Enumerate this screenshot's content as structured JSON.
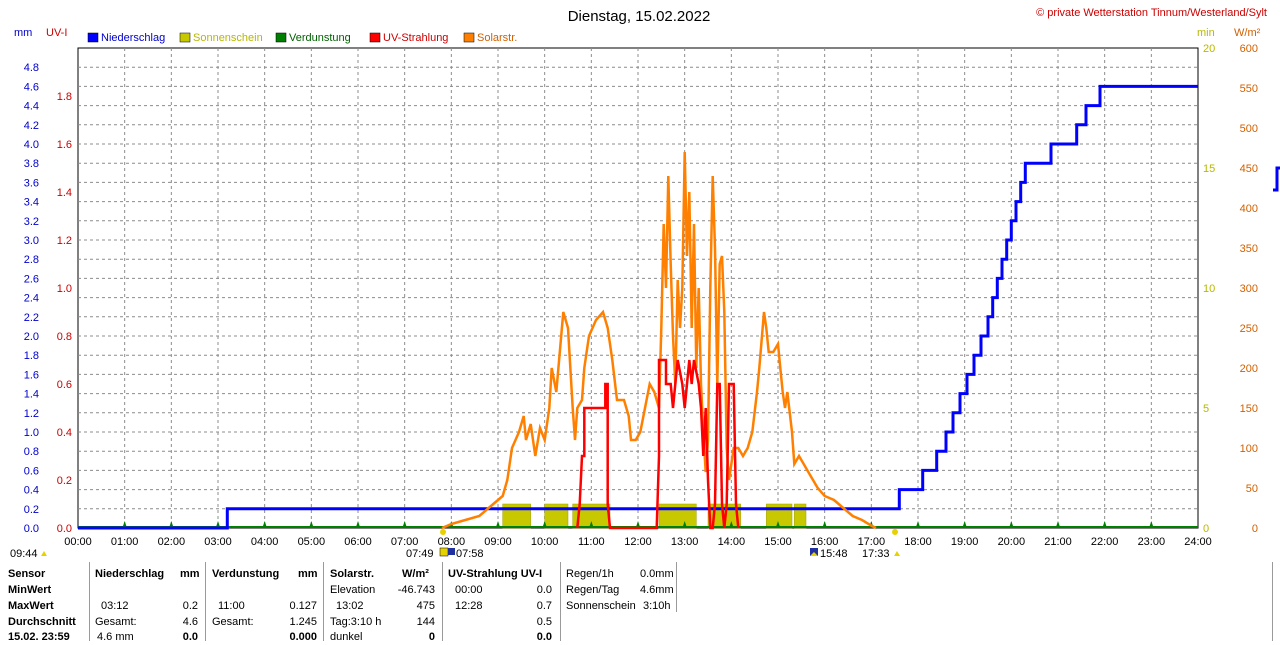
{
  "header": {
    "title": "Dienstag, 15.02.2022",
    "copyright": "© private Wetterstation Tinnum/Westerland/Sylt"
  },
  "axes": {
    "left_unit_mm": "mm",
    "left_unit_uv": "UV-I",
    "right_unit_min": "min",
    "right_unit_wm2": "W/m²",
    "mm_ticks": [
      "4.8",
      "4.6",
      "4.4",
      "4.2",
      "4.0",
      "3.8",
      "3.6",
      "3.4",
      "3.2",
      "3.0",
      "2.8",
      "2.6",
      "2.4",
      "2.2",
      "2.0",
      "1.8",
      "1.6",
      "1.4",
      "1.2",
      "1.0",
      "0.8",
      "0.6",
      "0.4",
      "0.2",
      "0.0"
    ],
    "uv_ticks": [
      "1.8",
      "1.6",
      "1.4",
      "1.2",
      "1.0",
      "0.8",
      "0.6",
      "0.4",
      "0.2",
      "0.0"
    ],
    "min_ticks": [
      "20",
      "15",
      "10",
      "5",
      "0"
    ],
    "wm2_ticks": [
      "600",
      "550",
      "500",
      "450",
      "400",
      "350",
      "300",
      "250",
      "200",
      "150",
      "100",
      "50",
      "0"
    ],
    "x_ticks": [
      "00:00",
      "01:00",
      "02:00",
      "03:00",
      "04:00",
      "05:00",
      "06:00",
      "07:00",
      "08:00",
      "09:00",
      "10:00",
      "11:00",
      "12:00",
      "13:00",
      "14:00",
      "15:00",
      "16:00",
      "17:00",
      "18:00",
      "19:00",
      "20:00",
      "21:00",
      "22:00",
      "23:00",
      "24:00"
    ]
  },
  "legend": [
    {
      "label": "Niederschlag",
      "color": "#0000ff",
      "text_color": "#0000cc"
    },
    {
      "label": "Sonnenschein",
      "color": "#c8c800",
      "text_color": "#b8b800"
    },
    {
      "label": "Verdunstung",
      "color": "#008000",
      "text_color": "#006000"
    },
    {
      "label": "UV-Strahlung",
      "color": "#ff0000",
      "text_color": "#cc0000"
    },
    {
      "label": "Solarstr.",
      "color": "#ff8000",
      "text_color": "#d06000"
    }
  ],
  "sun_times": {
    "moonrise": "09:44",
    "sunrise": "07:49",
    "sunrise2": "07:58",
    "sunset": "15:48",
    "sunset2": "17:33"
  },
  "chart_data": {
    "type": "line",
    "x_unit": "hour",
    "xlim": [
      0,
      24
    ],
    "ylim_mm": [
      0,
      5.0
    ],
    "ylim_uv": [
      0,
      2.0
    ],
    "ylim_min": [
      0,
      20
    ],
    "ylim_wm2": [
      0,
      600
    ],
    "series": [
      {
        "name": "Niederschlag",
        "axis": "mm",
        "color": "#0000ff",
        "step": true,
        "points": [
          [
            0,
            0
          ],
          [
            3.2,
            0
          ],
          [
            3.2,
            0.2
          ],
          [
            17.6,
            0.2
          ],
          [
            17.6,
            0.4
          ],
          [
            18.1,
            0.4
          ],
          [
            18.1,
            0.6
          ],
          [
            18.4,
            0.6
          ],
          [
            18.4,
            0.8
          ],
          [
            18.6,
            0.8
          ],
          [
            18.6,
            1.0
          ],
          [
            18.75,
            1.0
          ],
          [
            18.75,
            1.2
          ],
          [
            18.9,
            1.2
          ],
          [
            18.9,
            1.4
          ],
          [
            19.05,
            1.4
          ],
          [
            19.05,
            1.6
          ],
          [
            19.2,
            1.6
          ],
          [
            19.2,
            1.8
          ],
          [
            19.35,
            1.8
          ],
          [
            19.35,
            2.0
          ],
          [
            19.5,
            2.0
          ],
          [
            19.5,
            2.2
          ],
          [
            19.6,
            2.2
          ],
          [
            19.6,
            2.4
          ],
          [
            19.7,
            2.4
          ],
          [
            19.7,
            2.6
          ],
          [
            19.8,
            2.6
          ],
          [
            19.8,
            2.8
          ],
          [
            19.9,
            2.8
          ],
          [
            19.9,
            3.0
          ],
          [
            20.0,
            3.0
          ],
          [
            20.0,
            3.2
          ],
          [
            20.1,
            3.2
          ],
          [
            20.1,
            3.4
          ],
          [
            20.2,
            3.4
          ],
          [
            20.2,
            3.6
          ],
          [
            20.3,
            3.6
          ],
          [
            20.3,
            3.8
          ],
          [
            20.85,
            3.8
          ],
          [
            20.85,
            4.0
          ],
          [
            21.4,
            4.0
          ],
          [
            21.4,
            4.2
          ],
          [
            21.6,
            4.2
          ],
          [
            21.6,
            4.4
          ],
          [
            21.9,
            4.4
          ],
          [
            21.9,
            4.6
          ],
          [
            24,
            4.6
          ]
        ]
      },
      {
        "name": "Solarstr.",
        "axis": "wm2",
        "color": "#ff8000",
        "points": [
          [
            7.8,
            0
          ],
          [
            8.0,
            5
          ],
          [
            8.3,
            10
          ],
          [
            8.6,
            15
          ],
          [
            8.9,
            30
          ],
          [
            9.1,
            40
          ],
          [
            9.2,
            60
          ],
          [
            9.3,
            100
          ],
          [
            9.45,
            120
          ],
          [
            9.55,
            140
          ],
          [
            9.6,
            110
          ],
          [
            9.7,
            130
          ],
          [
            9.8,
            90
          ],
          [
            9.9,
            125
          ],
          [
            10.0,
            110
          ],
          [
            10.1,
            150
          ],
          [
            10.15,
            200
          ],
          [
            10.25,
            170
          ],
          [
            10.4,
            270
          ],
          [
            10.5,
            250
          ],
          [
            10.6,
            150
          ],
          [
            10.65,
            110
          ],
          [
            10.7,
            150
          ],
          [
            10.8,
            160
          ],
          [
            10.85,
            200
          ],
          [
            10.95,
            240
          ],
          [
            11.1,
            260
          ],
          [
            11.25,
            270
          ],
          [
            11.35,
            250
          ],
          [
            11.45,
            210
          ],
          [
            11.55,
            160
          ],
          [
            11.7,
            160
          ],
          [
            11.8,
            140
          ],
          [
            11.85,
            110
          ],
          [
            11.95,
            110
          ],
          [
            12.05,
            120
          ],
          [
            12.15,
            150
          ],
          [
            12.25,
            180
          ],
          [
            12.35,
            170
          ],
          [
            12.45,
            150
          ],
          [
            12.5,
            250
          ],
          [
            12.55,
            380
          ],
          [
            12.6,
            300
          ],
          [
            12.65,
            440
          ],
          [
            12.7,
            330
          ],
          [
            12.75,
            240
          ],
          [
            12.8,
            180
          ],
          [
            12.85,
            310
          ],
          [
            12.9,
            250
          ],
          [
            12.95,
            300
          ],
          [
            13.0,
            470
          ],
          [
            13.05,
            340
          ],
          [
            13.1,
            420
          ],
          [
            13.15,
            250
          ],
          [
            13.2,
            380
          ],
          [
            13.25,
            200
          ],
          [
            13.3,
            300
          ],
          [
            13.35,
            180
          ],
          [
            13.4,
            120
          ],
          [
            13.45,
            70
          ],
          [
            13.5,
            110
          ],
          [
            13.55,
            300
          ],
          [
            13.6,
            440
          ],
          [
            13.65,
            350
          ],
          [
            13.7,
            180
          ],
          [
            13.75,
            330
          ],
          [
            13.8,
            340
          ],
          [
            13.85,
            270
          ],
          [
            13.9,
            100
          ],
          [
            13.95,
            60
          ],
          [
            14.05,
            100
          ],
          [
            14.15,
            100
          ],
          [
            14.25,
            90
          ],
          [
            14.35,
            100
          ],
          [
            14.45,
            120
          ],
          [
            14.55,
            170
          ],
          [
            14.6,
            200
          ],
          [
            14.7,
            270
          ],
          [
            14.75,
            250
          ],
          [
            14.8,
            220
          ],
          [
            14.9,
            220
          ],
          [
            15.0,
            230
          ],
          [
            15.05,
            200
          ],
          [
            15.1,
            170
          ],
          [
            15.15,
            150
          ],
          [
            15.2,
            170
          ],
          [
            15.3,
            120
          ],
          [
            15.35,
            80
          ],
          [
            15.45,
            90
          ],
          [
            15.55,
            80
          ],
          [
            15.65,
            70
          ],
          [
            15.75,
            60
          ],
          [
            15.85,
            50
          ],
          [
            16.0,
            40
          ],
          [
            16.2,
            35
          ],
          [
            16.4,
            25
          ],
          [
            16.6,
            15
          ],
          [
            16.8,
            10
          ],
          [
            17.0,
            3
          ],
          [
            17.1,
            0
          ]
        ]
      },
      {
        "name": "UV-Strahlung",
        "axis": "uv",
        "color": "#ff0000",
        "points": [
          [
            10.7,
            0
          ],
          [
            10.75,
            0.1
          ],
          [
            10.8,
            0.3
          ],
          [
            10.85,
            0.3
          ],
          [
            10.85,
            0.5
          ],
          [
            11.3,
            0.5
          ],
          [
            11.3,
            0.6
          ],
          [
            11.35,
            0.6
          ],
          [
            11.35,
            0.1
          ],
          [
            11.4,
            0
          ],
          [
            12.4,
            0
          ],
          [
            12.45,
            0.3
          ],
          [
            12.45,
            0.7
          ],
          [
            12.6,
            0.7
          ],
          [
            12.6,
            0.6
          ],
          [
            12.7,
            0.6
          ],
          [
            12.75,
            0.5
          ],
          [
            12.8,
            0.6
          ],
          [
            12.85,
            0.7
          ],
          [
            12.95,
            0.6
          ],
          [
            13.0,
            0.5
          ],
          [
            13.05,
            0.6
          ],
          [
            13.1,
            0.7
          ],
          [
            13.15,
            0.6
          ],
          [
            13.2,
            0.7
          ],
          [
            13.3,
            0.6
          ],
          [
            13.35,
            0.5
          ],
          [
            13.4,
            0.3
          ],
          [
            13.45,
            0.5
          ],
          [
            13.5,
            0.2
          ],
          [
            13.55,
            0
          ],
          [
            13.6,
            0
          ],
          [
            13.65,
            0.1
          ],
          [
            13.7,
            0.6
          ],
          [
            13.75,
            0.6
          ],
          [
            13.8,
            0.1
          ],
          [
            13.85,
            0
          ],
          [
            13.9,
            0.1
          ],
          [
            13.95,
            0.6
          ],
          [
            14.05,
            0.6
          ],
          [
            14.1,
            0.1
          ],
          [
            14.15,
            0
          ]
        ]
      }
    ],
    "sunshine_bars": [
      [
        9.1,
        9.7
      ],
      [
        10.0,
        10.5
      ],
      [
        10.6,
        11.4
      ],
      [
        12.45,
        13.25
      ],
      [
        13.5,
        14.2
      ],
      [
        14.75,
        15.3
      ],
      [
        15.35,
        15.6
      ]
    ],
    "sunshine_bar_height_min": 1
  },
  "stats": {
    "headers": {
      "sensor": "Sensor",
      "niederschlag": "Niederschlag",
      "niederschlag_unit": "mm",
      "verdunstung": "Verdunstung",
      "verdunstung_unit": "mm",
      "solar": "Solarstr.",
      "solar_unit": "W/m²",
      "uv": "UV-Strahlung UV-I"
    },
    "rows": {
      "min": "MinWert",
      "max": "MaxWert",
      "avg": "Durchschnitt",
      "date": "15.02. 23:59"
    },
    "niederschlag": {
      "max_time": "03:12",
      "max_val": "0.2",
      "gesamt_label": "Gesamt:",
      "gesamt_val": "4.6",
      "last_a": "4.6 mm",
      "last_b": "0.0"
    },
    "verdunstung": {
      "max_time": "11:00",
      "max_val": "0.127",
      "gesamt_label": "Gesamt:",
      "gesamt_val": "1.245",
      "last_b": "0.000"
    },
    "solar": {
      "elev_label": "Elevation",
      "elev_val": "-46.743",
      "max_time": "13:02",
      "max_val": "475",
      "tag_label": "Tag:3:10 h",
      "tag_val": "144",
      "dunkel_label": "dunkel",
      "dunkel_val": "0"
    },
    "uv": {
      "min_time": "00:00",
      "min_val": "0.0",
      "max_time": "12:28",
      "max_val": "0.7",
      "avg_val": "0.5",
      "last_val": "0.0"
    },
    "regen": {
      "h_label": "Regen/1h",
      "h_val": "0.0mm",
      "tag_label": "Regen/Tag",
      "tag_val": "4.6mm",
      "sonne_label": "Sonnenschein",
      "sonne_val": "3:10h"
    }
  }
}
